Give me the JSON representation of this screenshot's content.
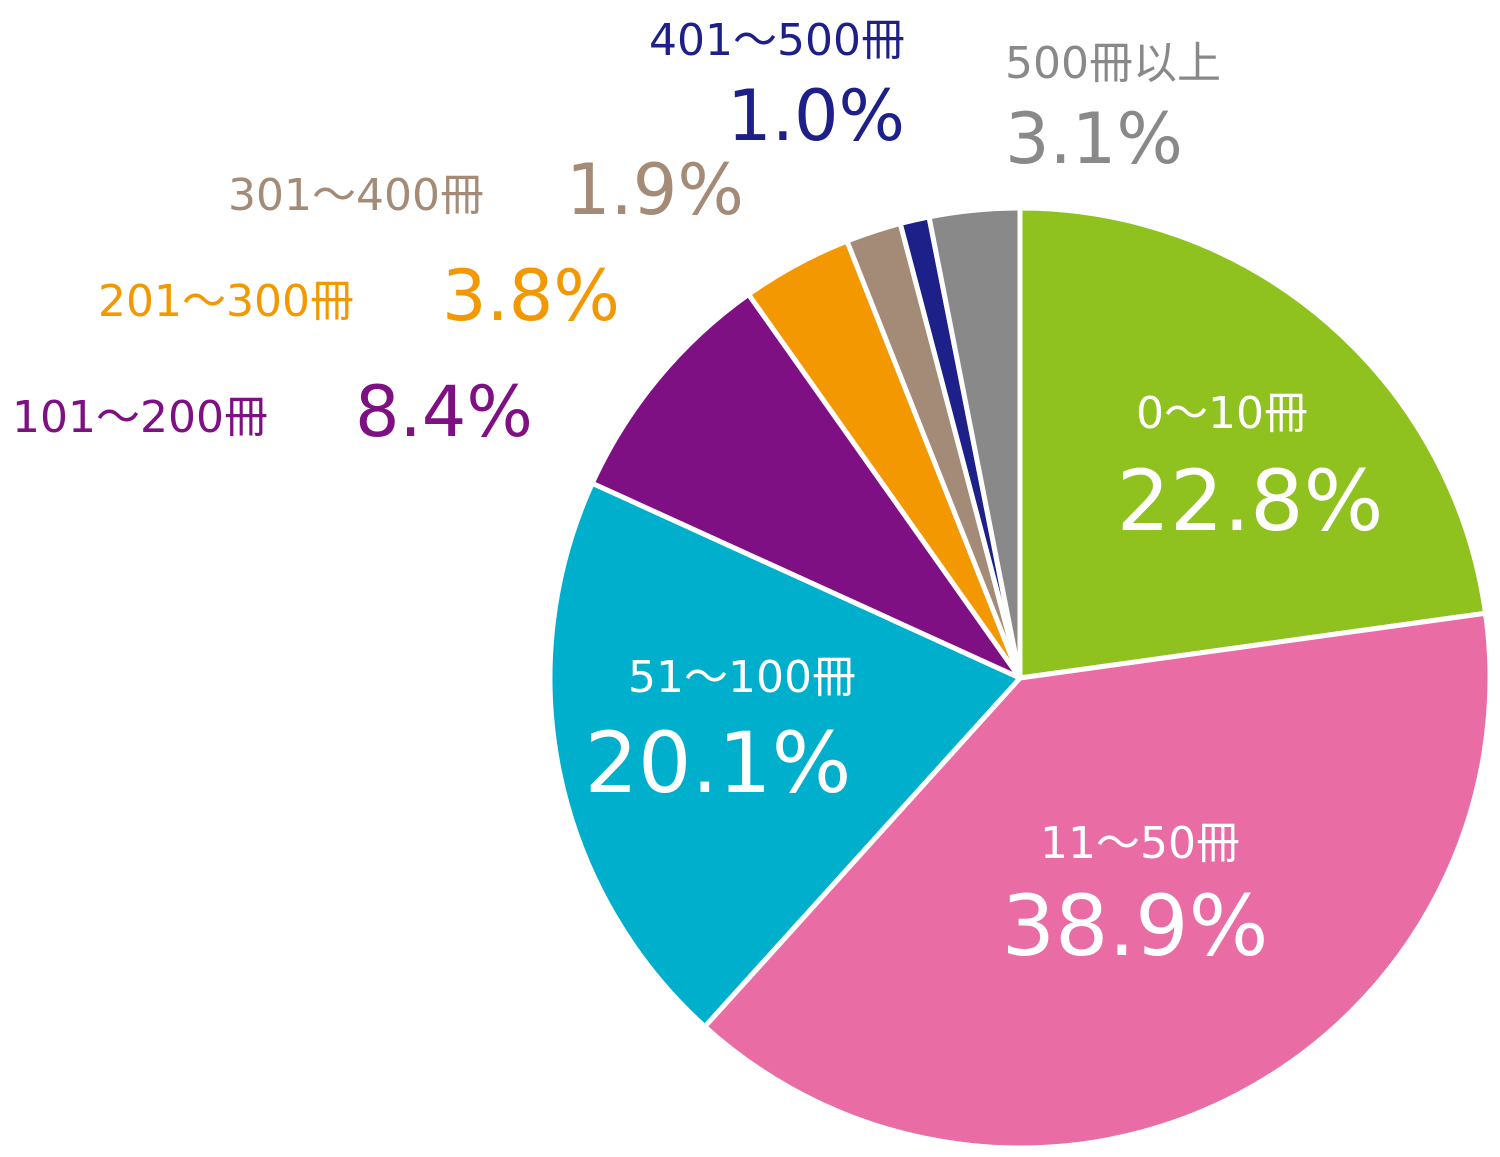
{
  "chart_data": {
    "type": "pie",
    "slices": [
      {
        "label": "0〜10冊",
        "value": 22.8,
        "value_text": "22.8%",
        "color": "#8fc11f"
      },
      {
        "label": "11〜50冊",
        "value": 38.9,
        "value_text": "38.9%",
        "color": "#ea6ca4"
      },
      {
        "label": "51〜100冊",
        "value": 20.1,
        "value_text": "20.1%",
        "color": "#00afcc"
      },
      {
        "label": "101〜200冊",
        "value": 8.4,
        "value_text": "8.4%",
        "color": "#7f1084"
      },
      {
        "label": "201〜300冊",
        "value": 3.8,
        "value_text": "3.8%",
        "color": "#f39800"
      },
      {
        "label": "301〜400冊",
        "value": 1.9,
        "value_text": "1.9%",
        "color": "#a48b78"
      },
      {
        "label": "401〜500冊",
        "value": 1.0,
        "value_text": "1.0%",
        "color": "#1d2088"
      },
      {
        "label": "500冊以上",
        "value": 3.1,
        "value_text": "3.1%",
        "color": "#898989"
      }
    ],
    "start": "12 o'clock",
    "direction": "clockwise"
  }
}
